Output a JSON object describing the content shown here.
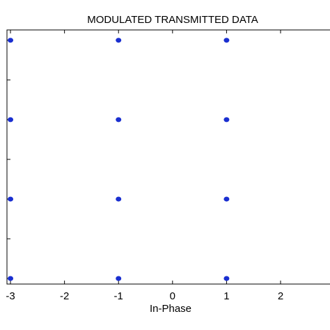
{
  "chart_data": {
    "type": "scatter",
    "title": "MODULATED TRANSMITTED DATA",
    "x_label": "In-Phase",
    "x": [
      -3,
      -3,
      -3,
      -3,
      -1,
      -1,
      -1,
      -1,
      1,
      1,
      1,
      1
    ],
    "y": [
      3,
      1,
      -1,
      -3,
      3,
      1,
      -1,
      -3,
      3,
      1,
      -1,
      -3
    ],
    "color": "#1a2fd0",
    "xlim": [
      -3.065,
      2.915
    ],
    "xticks": [
      -3,
      -2,
      -1,
      0,
      1,
      2
    ],
    "ylim": [
      -3.14,
      3.26
    ],
    "yticks": [
      -3,
      -2,
      -1,
      0,
      1,
      2,
      3
    ]
  }
}
